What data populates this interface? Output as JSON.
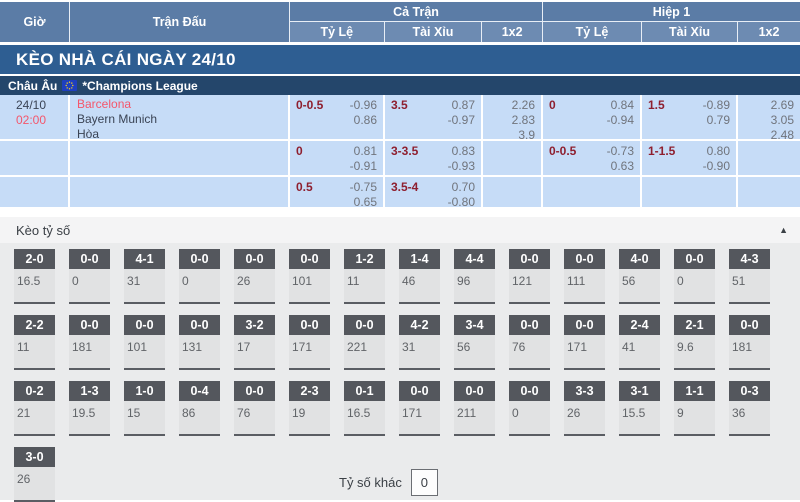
{
  "header": {
    "time": "Giờ",
    "match": "Trận Đấu",
    "full_time": "Cả Trận",
    "first_half": "Hiệp 1",
    "sub": {
      "handicap": "Tỷ Lệ",
      "over_under": "Tài Xỉu",
      "one_x_two": "1x2"
    }
  },
  "title_bar": {
    "label": "KÈO NHÀ CÁI NGÀY 24/10"
  },
  "league_bar": {
    "region": "Châu Âu",
    "flag_icon": "eu-flag-icon",
    "league": "*Champions League"
  },
  "match": {
    "date": "24/10",
    "time": "02:00",
    "teams": [
      "Barcelona",
      "Bayern Munich",
      "Hòa"
    ]
  },
  "odds_rows": [
    {
      "ft_hdp": {
        "line": "0-0.5",
        "o1": "-0.96",
        "o2": "0.86"
      },
      "ft_ou": {
        "line": "3.5",
        "o1": "0.87",
        "o2": "-0.97"
      },
      "ft_1x2": {
        "v1": "2.26",
        "v2": "2.83",
        "v3": "3.9"
      },
      "h1_hdp": {
        "line": "0",
        "o1": "0.84",
        "o2": "-0.94"
      },
      "h1_ou": {
        "line": "1.5",
        "o1": "-0.89",
        "o2": "0.79"
      },
      "h1_1x2": {
        "v1": "2.69",
        "v2": "3.05",
        "v3": "2.48"
      }
    },
    {
      "ft_hdp": {
        "line": "0",
        "o1": "0.81",
        "o2": "-0.91"
      },
      "ft_ou": {
        "line": "3-3.5",
        "o1": "0.83",
        "o2": "-0.93"
      },
      "h1_hdp": {
        "line": "0-0.5",
        "o1": "-0.73",
        "o2": "0.63"
      },
      "h1_ou": {
        "line": "1-1.5",
        "o1": "0.80",
        "o2": "-0.90"
      }
    },
    {
      "ft_hdp": {
        "line": "0.5",
        "o1": "-0.75",
        "o2": "0.65"
      },
      "ft_ou": {
        "line": "3.5-4",
        "o1": "0.70",
        "o2": "-0.80"
      }
    }
  ],
  "score_section": {
    "title": "Kèo tỷ số",
    "collapse_icon": "caret-up-icon",
    "rows": [
      [
        {
          "s": "2-0",
          "v": "16.5"
        },
        {
          "s": "0-0",
          "v": "0"
        },
        {
          "s": "4-1",
          "v": "31"
        },
        {
          "s": "0-0",
          "v": "0"
        },
        {
          "s": "0-0",
          "v": "26"
        },
        {
          "s": "0-0",
          "v": "101"
        },
        {
          "s": "1-2",
          "v": "11"
        },
        {
          "s": "1-4",
          "v": "46"
        },
        {
          "s": "4-4",
          "v": "96"
        },
        {
          "s": "0-0",
          "v": "121"
        },
        {
          "s": "0-0",
          "v": "111"
        },
        {
          "s": "4-0",
          "v": "56"
        },
        {
          "s": "0-0",
          "v": "0"
        },
        {
          "s": "4-3",
          "v": "51"
        }
      ],
      [
        {
          "s": "2-2",
          "v": "11"
        },
        {
          "s": "0-0",
          "v": "181"
        },
        {
          "s": "0-0",
          "v": "101"
        },
        {
          "s": "0-0",
          "v": "131"
        },
        {
          "s": "3-2",
          "v": "17"
        },
        {
          "s": "0-0",
          "v": "171"
        },
        {
          "s": "0-0",
          "v": "221"
        },
        {
          "s": "4-2",
          "v": "31"
        },
        {
          "s": "3-4",
          "v": "56"
        },
        {
          "s": "0-0",
          "v": "76"
        },
        {
          "s": "0-0",
          "v": "171"
        },
        {
          "s": "2-4",
          "v": "41"
        },
        {
          "s": "2-1",
          "v": "9.6"
        },
        {
          "s": "0-0",
          "v": "181"
        }
      ],
      [
        {
          "s": "0-2",
          "v": "21"
        },
        {
          "s": "1-3",
          "v": "19.5"
        },
        {
          "s": "1-0",
          "v": "15"
        },
        {
          "s": "0-4",
          "v": "86"
        },
        {
          "s": "0-0",
          "v": "76"
        },
        {
          "s": "2-3",
          "v": "19"
        },
        {
          "s": "0-1",
          "v": "16.5"
        },
        {
          "s": "0-0",
          "v": "171"
        },
        {
          "s": "0-0",
          "v": "211"
        },
        {
          "s": "0-0",
          "v": "0"
        },
        {
          "s": "3-3",
          "v": "26"
        },
        {
          "s": "3-1",
          "v": "15.5"
        },
        {
          "s": "1-1",
          "v": "9"
        },
        {
          "s": "0-3",
          "v": "36"
        }
      ],
      [
        {
          "s": "3-0",
          "v": "26"
        }
      ]
    ],
    "other": {
      "label": "Tỷ số khác",
      "value": "0"
    }
  },
  "colors": {
    "header_bg": "#5b7ca6",
    "subheader_bg": "#6d8bb2",
    "title_bar_bg": "#2e5e92",
    "league_bar_bg": "#24466b",
    "row_bg": "#c6dcf7",
    "accent_red": "#f4566b",
    "handicap_red": "#8e1f2f",
    "odds_gray": "#70747c",
    "chip_bg": "#54575d",
    "section_bg": "#eaebec"
  }
}
